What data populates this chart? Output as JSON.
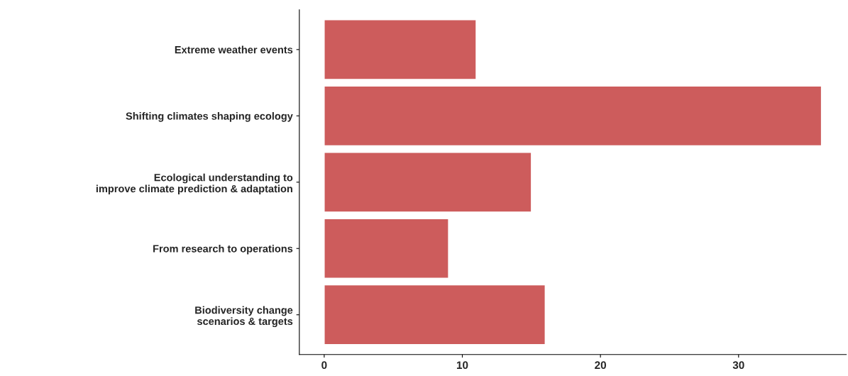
{
  "chart_data": {
    "type": "bar",
    "orientation": "horizontal",
    "categories": [
      "Extreme weather events",
      "Shifting climates shaping ecology",
      "Ecological understanding to\nimprove climate prediction & adaptation",
      "From research to operations",
      "Biodiversity change\nscenarios & targets"
    ],
    "values": [
      11,
      36,
      15,
      9,
      16
    ],
    "color": "#cd5c5c",
    "xlim": [
      -1.8,
      37.8
    ],
    "xticks": [
      0,
      10,
      20,
      30
    ],
    "grid": false,
    "legend": false
  }
}
